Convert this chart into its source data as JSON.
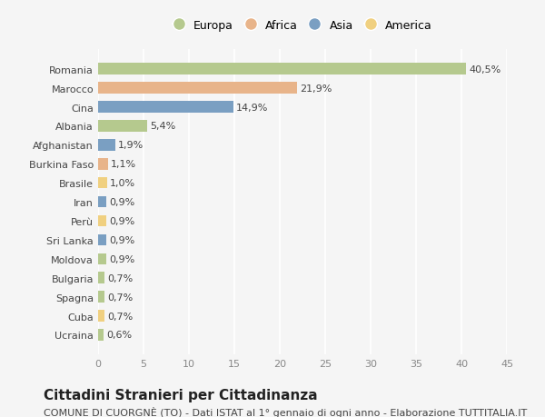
{
  "categories": [
    "Romania",
    "Marocco",
    "Cina",
    "Albania",
    "Afghanistan",
    "Burkina Faso",
    "Brasile",
    "Iran",
    "Perù",
    "Sri Lanka",
    "Moldova",
    "Bulgaria",
    "Spagna",
    "Cuba",
    "Ucraina"
  ],
  "values": [
    40.5,
    21.9,
    14.9,
    5.4,
    1.9,
    1.1,
    1.0,
    0.9,
    0.9,
    0.9,
    0.9,
    0.7,
    0.7,
    0.7,
    0.6
  ],
  "labels": [
    "40,5%",
    "21,9%",
    "14,9%",
    "5,4%",
    "1,9%",
    "1,1%",
    "1,0%",
    "0,9%",
    "0,9%",
    "0,9%",
    "0,9%",
    "0,7%",
    "0,7%",
    "0,7%",
    "0,6%"
  ],
  "colors": [
    "#b5c98e",
    "#e8b48a",
    "#7a9fc2",
    "#b5c98e",
    "#7a9fc2",
    "#e8b48a",
    "#f0d080",
    "#7a9fc2",
    "#f0d080",
    "#7a9fc2",
    "#b5c98e",
    "#b5c98e",
    "#b5c98e",
    "#f0d080",
    "#b5c98e"
  ],
  "legend_labels": [
    "Europa",
    "Africa",
    "Asia",
    "America"
  ],
  "legend_colors": [
    "#b5c98e",
    "#e8b48a",
    "#7a9fc2",
    "#f0d080"
  ],
  "title": "Cittadini Stranieri per Cittadinanza",
  "subtitle": "COMUNE DI CUORGNÈ (TO) - Dati ISTAT al 1° gennaio di ogni anno - Elaborazione TUTTITALIA.IT",
  "xlim": [
    0,
    45
  ],
  "xticks": [
    0,
    5,
    10,
    15,
    20,
    25,
    30,
    35,
    40,
    45
  ],
  "background_color": "#f5f5f5",
  "bar_height": 0.6,
  "grid_color": "#ffffff",
  "title_fontsize": 11,
  "subtitle_fontsize": 8,
  "tick_fontsize": 8,
  "label_fontsize": 8
}
